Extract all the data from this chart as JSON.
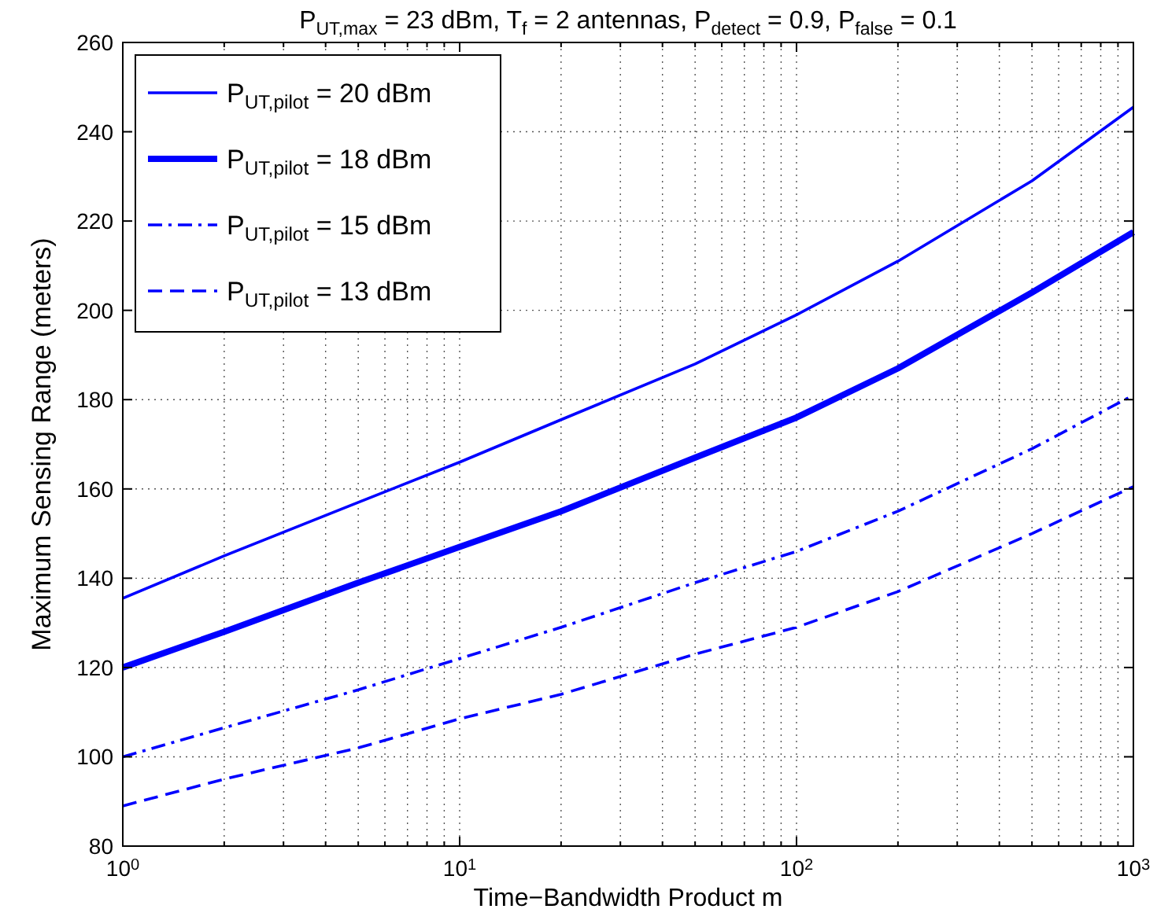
{
  "chart_data": {
    "type": "line",
    "title": "P$_{UT,max}$ = 23 dBm, T$_{f}$ = 2 antennas, P$_{detect}$ = 0.9, P$_{false}$ = 0.1",
    "xlabel": "Time−Bandwidth Product m",
    "ylabel": "Maximum Sensing Range (meters)",
    "log": "x",
    "grid": true,
    "legend": "top left",
    "marker": "none",
    "x": [
      1,
      2,
      5,
      10,
      20,
      50,
      100,
      200,
      500,
      1000
    ],
    "xlim": [
      1,
      1000
    ],
    "xticks": [
      {
        "value": 1,
        "label": "10$^{0}$"
      },
      {
        "value": 10,
        "label": "10$^{1}$"
      },
      {
        "value": 100,
        "label": "10$^{2}$"
      },
      {
        "value": 1000,
        "label": "10$^{3}$"
      }
    ],
    "ylim": [
      80,
      260
    ],
    "yticks": [
      80,
      100,
      120,
      140,
      160,
      180,
      200,
      220,
      240,
      260
    ],
    "series": [
      {
        "name": "P$_{UT,pilot}$ = 20 dBm",
        "color": "#0000ff",
        "line_style": "solid",
        "values": [
          135.5,
          145,
          157,
          166,
          175.5,
          188,
          199,
          211,
          229,
          245.5
        ]
      },
      {
        "name": "P$_{UT,pilot}$ = 18 dBm",
        "color": "#0000ff",
        "line_style": "solid",
        "values": [
          120,
          128,
          139,
          147,
          155,
          167,
          176,
          187,
          204,
          217.5
        ]
      },
      {
        "name": "P$_{UT,pilot}$ = 15 dBm",
        "color": "#0000ff",
        "line_style": "dashdot",
        "values": [
          100,
          106.5,
          115,
          122,
          129,
          139,
          146,
          155,
          169,
          181
        ]
      },
      {
        "name": "P$_{UT,pilot}$ = 13 dBm",
        "color": "#0000ff",
        "line_style": "dashed",
        "values": [
          89,
          95,
          102,
          108.5,
          114,
          123,
          129,
          137,
          150,
          160.5
        ]
      }
    ]
  }
}
